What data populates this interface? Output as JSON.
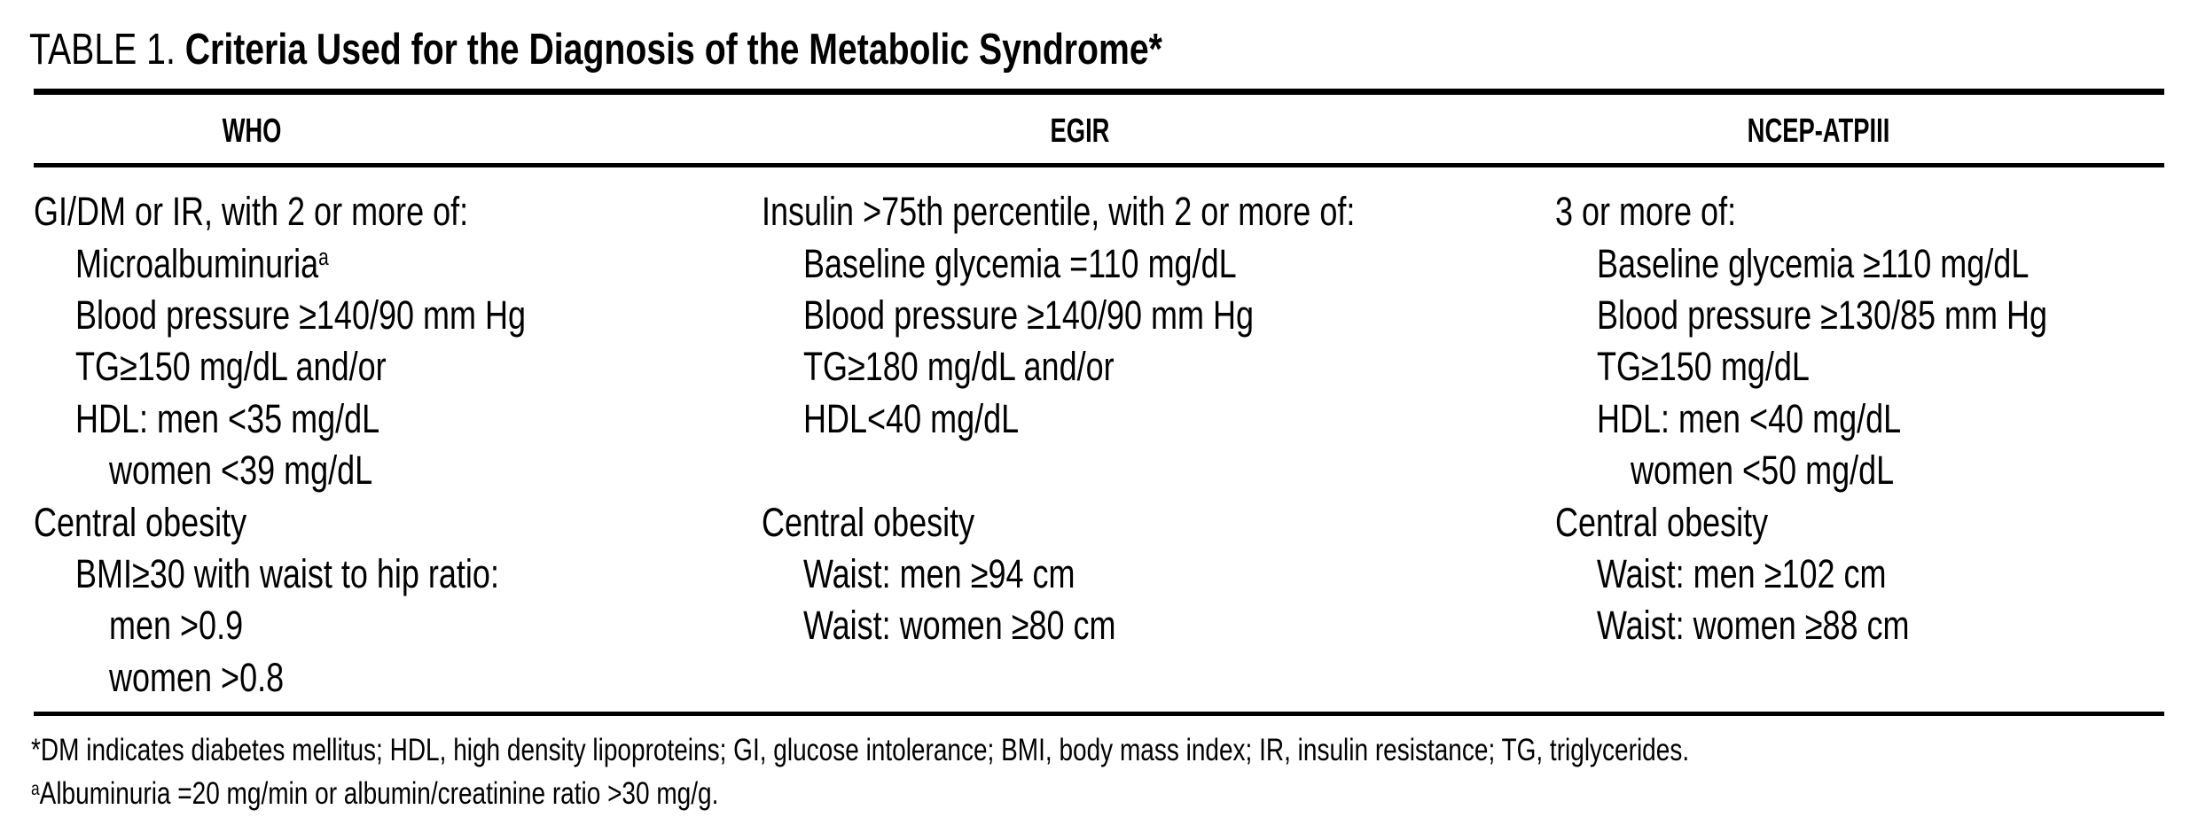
{
  "title": {
    "label": "TABLE 1. ",
    "bold": "Criteria Used for the Diagnosis of the Metabolic Syndrome*"
  },
  "columns": [
    {
      "header": "WHO",
      "lines": [
        "GI/DM or IR, with 2 or more of:",
        {
          "text": "Microalbuminuria",
          "sup": "a"
        },
        "Blood pressure ≥140/90 mm Hg",
        "TG≥150 mg/dL and/or",
        "HDL: men <35 mg/dL",
        "women <39 mg/dL",
        "Central obesity",
        "BMI≥30 with waist to hip ratio:",
        "men >0.9",
        "women >0.8"
      ]
    },
    {
      "header": "EGIR",
      "lines": [
        "Insulin >75th percentile, with 2 or more of:",
        "Baseline glycemia =110 mg/dL",
        "Blood pressure ≥140/90 mm Hg",
        "TG≥180 mg/dL and/or",
        "HDL<40 mg/dL",
        "",
        "Central obesity",
        "Waist: men ≥94 cm",
        "Waist: women ≥80 cm",
        ""
      ]
    },
    {
      "header": "NCEP-ATPIII",
      "lines": [
        "3 or more of:",
        "Baseline glycemia ≥110 mg/dL",
        "Blood pressure ≥130/85 mm Hg",
        "TG≥150 mg/dL",
        "HDL: men <40 mg/dL",
        "women <50 mg/dL",
        "Central obesity",
        "Waist: men ≥102 cm",
        "Waist: women ≥88 cm",
        ""
      ]
    }
  ],
  "footnotes": {
    "first": "*DM indicates diabetes mellitus; HDL, high density lipoproteins; GI, glucose intolerance; BMI, body mass index; IR, insulin resistance; TG, triglycerides.",
    "second": {
      "sup": "a",
      "text": "Albuminuria =20 mg/min or albumin/creatinine ratio >30 mg/g."
    }
  }
}
